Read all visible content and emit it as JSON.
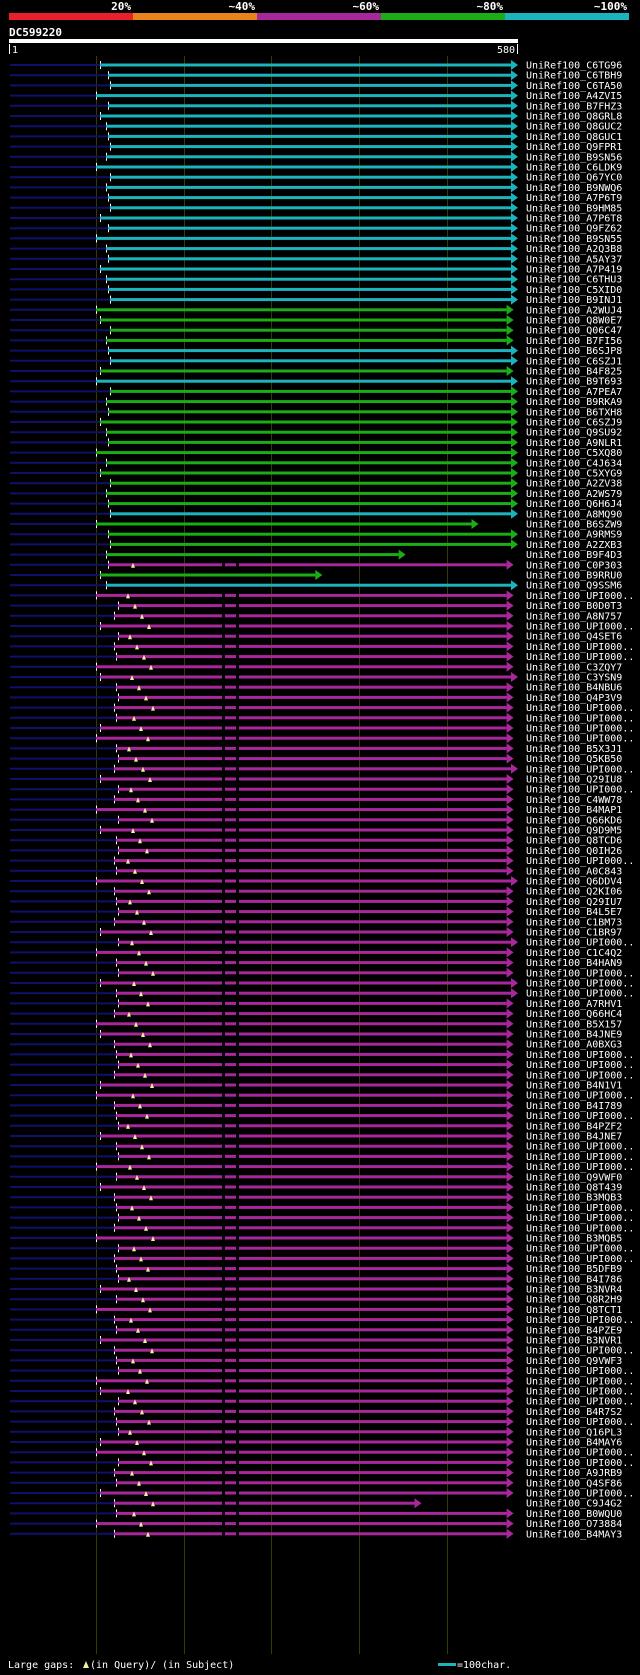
{
  "header": {
    "scale_labels": [
      "20%",
      "~40%",
      "~60%",
      "~80%",
      "~100%"
    ],
    "scale_colors": [
      "#e8202a",
      "#e8841c",
      "#a8289c",
      "#1cac18",
      "#1cb4bc"
    ],
    "query_id": "DC599220",
    "ruler_start": "1",
    "ruler_end": "580"
  },
  "footer": {
    "gaps_label": "Large gaps:",
    "query_gap_text": "(in Query)/",
    "subject_gap_text": "(in Subject)",
    "scale_text": "=100char."
  },
  "colors": {
    "cyan": "#1cb4bc",
    "green": "#1cac18",
    "magenta": "#a8289c",
    "navy": "#10106a",
    "gap": "#f0f0a0"
  },
  "hits": [
    {
      "label": "UniRef100_C6TG96",
      "c": "cyan",
      "end": 580
    },
    {
      "label": "UniRef100_C6TBH9",
      "c": "cyan",
      "end": 580
    },
    {
      "label": "UniRef100_C6TA50",
      "c": "cyan",
      "end": 580
    },
    {
      "label": "UniRef100_A4ZVI5",
      "c": "cyan",
      "end": 580
    },
    {
      "label": "UniRef100_B7FHZ3",
      "c": "cyan",
      "end": 580
    },
    {
      "label": "UniRef100_Q8GRL8",
      "c": "cyan",
      "end": 580
    },
    {
      "label": "UniRef100_Q8GUC2",
      "c": "cyan",
      "end": 580
    },
    {
      "label": "UniRef100_Q8GUC1",
      "c": "cyan",
      "end": 580
    },
    {
      "label": "UniRef100_Q9FPR1",
      "c": "cyan",
      "end": 580
    },
    {
      "label": "UniRef100_B9SN56",
      "c": "cyan",
      "end": 580
    },
    {
      "label": "UniRef100_C6LDK9",
      "c": "cyan",
      "end": 580
    },
    {
      "label": "UniRef100_Q67YC0",
      "c": "cyan",
      "end": 580
    },
    {
      "label": "UniRef100_B9NWQ6",
      "c": "cyan",
      "end": 580
    },
    {
      "label": "UniRef100_A7P6T9",
      "c": "cyan",
      "end": 580
    },
    {
      "label": "UniRef100_B9HM85",
      "c": "cyan",
      "end": 580
    },
    {
      "label": "UniRef100_A7P6T8",
      "c": "cyan",
      "end": 580
    },
    {
      "label": "UniRef100_Q9FZ62",
      "c": "cyan",
      "end": 580
    },
    {
      "label": "UniRef100_B9SN55",
      "c": "cyan",
      "end": 580
    },
    {
      "label": "UniRef100_A2Q3B8",
      "c": "cyan",
      "end": 580
    },
    {
      "label": "UniRef100_A5AY37",
      "c": "cyan",
      "end": 580
    },
    {
      "label": "UniRef100_A7P419",
      "c": "cyan",
      "end": 580
    },
    {
      "label": "UniRef100_C6THU3",
      "c": "cyan",
      "end": 580
    },
    {
      "label": "UniRef100_C5XID0",
      "c": "cyan",
      "end": 580
    },
    {
      "label": "UniRef100_B9INJ1",
      "c": "cyan",
      "end": 580
    },
    {
      "label": "UniRef100_A2WUJ4",
      "c": "green",
      "end": 575
    },
    {
      "label": "UniRef100_Q8W0E7",
      "c": "green",
      "end": 575
    },
    {
      "label": "UniRef100_Q06C47",
      "c": "green",
      "end": 575
    },
    {
      "label": "UniRef100_B7FI56",
      "c": "green",
      "end": 575
    },
    {
      "label": "UniRef100_B6SJP8",
      "c": "cyan",
      "end": 580
    },
    {
      "label": "UniRef100_C6SZJ1",
      "c": "cyan",
      "end": 580
    },
    {
      "label": "UniRef100_B4F825",
      "c": "green",
      "end": 575
    },
    {
      "label": "UniRef100_B9T693",
      "c": "cyan",
      "end": 580
    },
    {
      "label": "UniRef100_A7PEA7",
      "c": "green",
      "end": 580
    },
    {
      "label": "UniRef100_B9RKA9",
      "c": "green",
      "end": 580
    },
    {
      "label": "UniRef100_B6TXH8",
      "c": "green",
      "end": 580
    },
    {
      "label": "UniRef100_C6SZJ9",
      "c": "green",
      "end": 580
    },
    {
      "label": "UniRef100_Q9SU92",
      "c": "green",
      "end": 580
    },
    {
      "label": "UniRef100_A9NLR1",
      "c": "green",
      "end": 580
    },
    {
      "label": "UniRef100_C5XQ80",
      "c": "green",
      "end": 580
    },
    {
      "label": "UniRef100_C4J634",
      "c": "green",
      "end": 580
    },
    {
      "label": "UniRef100_C5XYG9",
      "c": "green",
      "end": 580
    },
    {
      "label": "UniRef100_A2ZV38",
      "c": "green",
      "end": 580
    },
    {
      "label": "UniRef100_A2WS79",
      "c": "green",
      "end": 580
    },
    {
      "label": "UniRef100_Q6H6J4",
      "c": "green",
      "end": 580
    },
    {
      "label": "UniRef100_A8MQ90",
      "c": "cyan",
      "end": 580
    },
    {
      "label": "UniRef100_B6SZW9",
      "c": "green",
      "end": 535
    },
    {
      "label": "UniRef100_A9RMS9",
      "c": "green",
      "end": 580
    },
    {
      "label": "UniRef100_A2ZXB3",
      "c": "green",
      "end": 580
    },
    {
      "label": "UniRef100_B9F4D3",
      "c": "green",
      "end": 452
    },
    {
      "label": "UniRef100_C0P303",
      "c": "magenta",
      "end": 575
    },
    {
      "label": "UniRef100_B9RRU0",
      "c": "green",
      "end": 357
    },
    {
      "label": "UniRef100_Q9SSM6",
      "c": "cyan",
      "end": 580
    },
    {
      "label": "UniRef100_UPI000..",
      "c": "magenta",
      "end": 575
    },
    {
      "label": "UniRef100_B0D0T3",
      "c": "magenta",
      "end": 575
    },
    {
      "label": "UniRef100_A8N757",
      "c": "magenta",
      "end": 575
    },
    {
      "label": "UniRef100_UPI000..",
      "c": "magenta",
      "end": 575
    },
    {
      "label": "UniRef100_Q4SET6",
      "c": "magenta",
      "end": 575
    },
    {
      "label": "UniRef100_UPI000..",
      "c": "magenta",
      "end": 575
    },
    {
      "label": "UniRef100_UPI000..",
      "c": "magenta",
      "end": 575
    },
    {
      "label": "UniRef100_C3ZQY7",
      "c": "magenta",
      "end": 575
    },
    {
      "label": "UniRef100_C3YSN9",
      "c": "magenta",
      "end": 580
    },
    {
      "label": "UniRef100_B4NBU6",
      "c": "magenta",
      "end": 575
    },
    {
      "label": "UniRef100_Q4P3V9",
      "c": "magenta",
      "end": 575
    },
    {
      "label": "UniRef100_UPI000..",
      "c": "magenta",
      "end": 575
    },
    {
      "label": "UniRef100_UPI000..",
      "c": "magenta",
      "end": 575
    },
    {
      "label": "UniRef100_UPI000..",
      "c": "magenta",
      "end": 575
    },
    {
      "label": "UniRef100_UPI000..",
      "c": "magenta",
      "end": 575
    },
    {
      "label": "UniRef100_B5X3J1",
      "c": "magenta",
      "end": 575
    },
    {
      "label": "UniRef100_Q5KB50",
      "c": "magenta",
      "end": 575
    },
    {
      "label": "UniRef100_UPI000..",
      "c": "magenta",
      "end": 580
    },
    {
      "label": "UniRef100_Q29IU8",
      "c": "magenta",
      "end": 575
    },
    {
      "label": "UniRef100_UPI000..",
      "c": "magenta",
      "end": 575
    },
    {
      "label": "UniRef100_C4WW78",
      "c": "magenta",
      "end": 575
    },
    {
      "label": "UniRef100_B4MAP1",
      "c": "magenta",
      "end": 575
    },
    {
      "label": "UniRef100_Q66KD6",
      "c": "magenta",
      "end": 575
    },
    {
      "label": "UniRef100_Q9D9M5",
      "c": "magenta",
      "end": 575
    },
    {
      "label": "UniRef100_Q8TCD6",
      "c": "magenta",
      "end": 575
    },
    {
      "label": "UniRef100_Q0IH26",
      "c": "magenta",
      "end": 575
    },
    {
      "label": "UniRef100_UPI000..",
      "c": "magenta",
      "end": 575
    },
    {
      "label": "UniRef100_A0C843",
      "c": "magenta",
      "end": 575
    },
    {
      "label": "UniRef100_Q6DDV4",
      "c": "magenta",
      "end": 580
    },
    {
      "label": "UniRef100_Q2KI06",
      "c": "magenta",
      "end": 575
    },
    {
      "label": "UniRef100_Q29IU7",
      "c": "magenta",
      "end": 575
    },
    {
      "label": "UniRef100_B4L5E7",
      "c": "magenta",
      "end": 575
    },
    {
      "label": "UniRef100_C1BM73",
      "c": "magenta",
      "end": 575
    },
    {
      "label": "UniRef100_C1BR97",
      "c": "magenta",
      "end": 575
    },
    {
      "label": "UniRef100_UPI000..",
      "c": "magenta",
      "end": 580
    },
    {
      "label": "UniRef100_C1C4Q2",
      "c": "magenta",
      "end": 575
    },
    {
      "label": "UniRef100_B4HAN9",
      "c": "magenta",
      "end": 575
    },
    {
      "label": "UniRef100_UPI000..",
      "c": "magenta",
      "end": 575
    },
    {
      "label": "UniRef100_UPI000..",
      "c": "magenta",
      "end": 580
    },
    {
      "label": "UniRef100_UPI000..",
      "c": "magenta",
      "end": 580
    },
    {
      "label": "UniRef100_A7RHV1",
      "c": "magenta",
      "end": 575
    },
    {
      "label": "UniRef100_Q66HC4",
      "c": "magenta",
      "end": 575
    },
    {
      "label": "UniRef100_B5X157",
      "c": "magenta",
      "end": 575
    },
    {
      "label": "UniRef100_B4JNE9",
      "c": "magenta",
      "end": 575
    },
    {
      "label": "UniRef100_A0BXG3",
      "c": "magenta",
      "end": 575
    },
    {
      "label": "UniRef100_UPI000..",
      "c": "magenta",
      "end": 575
    },
    {
      "label": "UniRef100_UPI000..",
      "c": "magenta",
      "end": 575
    },
    {
      "label": "UniRef100_UPI000..",
      "c": "magenta",
      "end": 575
    },
    {
      "label": "UniRef100_B4N1V1",
      "c": "magenta",
      "end": 575
    },
    {
      "label": "UniRef100_UPI000..",
      "c": "magenta",
      "end": 575
    },
    {
      "label": "UniRef100_B4I789",
      "c": "magenta",
      "end": 575
    },
    {
      "label": "UniRef100_UPI000..",
      "c": "magenta",
      "end": 575
    },
    {
      "label": "UniRef100_B4PZF2",
      "c": "magenta",
      "end": 575
    },
    {
      "label": "UniRef100_B4JNE7",
      "c": "magenta",
      "end": 575
    },
    {
      "label": "UniRef100_UPI000..",
      "c": "magenta",
      "end": 575
    },
    {
      "label": "UniRef100_UPI000..",
      "c": "magenta",
      "end": 575
    },
    {
      "label": "UniRef100_UPI000..",
      "c": "magenta",
      "end": 575
    },
    {
      "label": "UniRef100_Q9VWF0",
      "c": "magenta",
      "end": 575
    },
    {
      "label": "UniRef100_Q8T439",
      "c": "magenta",
      "end": 575
    },
    {
      "label": "UniRef100_B3MQB3",
      "c": "magenta",
      "end": 575
    },
    {
      "label": "UniRef100_UPI000..",
      "c": "magenta",
      "end": 575
    },
    {
      "label": "UniRef100_UPI000..",
      "c": "magenta",
      "end": 575
    },
    {
      "label": "UniRef100_UPI000..",
      "c": "magenta",
      "end": 575
    },
    {
      "label": "UniRef100_B3MQB5",
      "c": "magenta",
      "end": 575
    },
    {
      "label": "UniRef100_UPI000..",
      "c": "magenta",
      "end": 575
    },
    {
      "label": "UniRef100_UPI000..",
      "c": "magenta",
      "end": 575
    },
    {
      "label": "UniRef100_B5DFB9",
      "c": "magenta",
      "end": 575
    },
    {
      "label": "UniRef100_B4I786",
      "c": "magenta",
      "end": 575
    },
    {
      "label": "UniRef100_B3NVR4",
      "c": "magenta",
      "end": 575
    },
    {
      "label": "UniRef100_Q8R2H9",
      "c": "magenta",
      "end": 575
    },
    {
      "label": "UniRef100_Q8TCT1",
      "c": "magenta",
      "end": 575
    },
    {
      "label": "UniRef100_UPI000..",
      "c": "magenta",
      "end": 575
    },
    {
      "label": "UniRef100_B4PZE9",
      "c": "magenta",
      "end": 575
    },
    {
      "label": "UniRef100_B3NVR1",
      "c": "magenta",
      "end": 575
    },
    {
      "label": "UniRef100_UPI000..",
      "c": "magenta",
      "end": 575
    },
    {
      "label": "UniRef100_Q9VWF3",
      "c": "magenta",
      "end": 575
    },
    {
      "label": "UniRef100_UPI000..",
      "c": "magenta",
      "end": 575
    },
    {
      "label": "UniRef100_UPI000..",
      "c": "magenta",
      "end": 575
    },
    {
      "label": "UniRef100_UPI000..",
      "c": "magenta",
      "end": 575
    },
    {
      "label": "UniRef100_UPI000..",
      "c": "magenta",
      "end": 575
    },
    {
      "label": "UniRef100_B4R7S2",
      "c": "magenta",
      "end": 575
    },
    {
      "label": "UniRef100_UPI000..",
      "c": "magenta",
      "end": 575
    },
    {
      "label": "UniRef100_Q16PL3",
      "c": "magenta",
      "end": 575
    },
    {
      "label": "UniRef100_B4MAY6",
      "c": "magenta",
      "end": 575
    },
    {
      "label": "UniRef100_UPI000..",
      "c": "magenta",
      "end": 575
    },
    {
      "label": "UniRef100_UPI000..",
      "c": "magenta",
      "end": 575
    },
    {
      "label": "UniRef100_A9JRB9",
      "c": "magenta",
      "end": 575
    },
    {
      "label": "UniRef100_Q4SF86",
      "c": "magenta",
      "end": 575
    },
    {
      "label": "UniRef100_UPI000..",
      "c": "magenta",
      "end": 575
    },
    {
      "label": "UniRef100_C9J4G2",
      "c": "magenta",
      "end": 470
    },
    {
      "label": "UniRef100_B0WQU0",
      "c": "magenta",
      "end": 575
    },
    {
      "label": "UniRef100_O73884",
      "c": "magenta",
      "end": 575
    },
    {
      "label": "UniRef100_B4MAY3",
      "c": "magenta",
      "end": 575
    }
  ]
}
